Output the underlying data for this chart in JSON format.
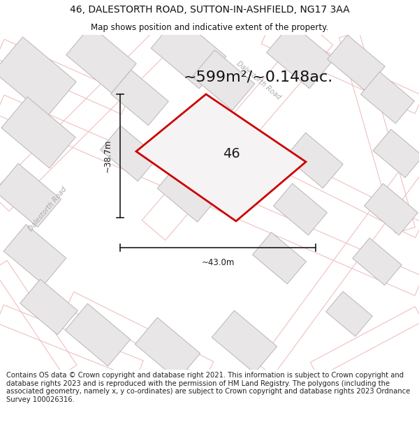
{
  "title_line1": "46, DALESTORTH ROAD, SUTTON-IN-ASHFIELD, NG17 3AA",
  "title_line2": "Map shows position and indicative extent of the property.",
  "area_text": "~599m²/~0.148ac.",
  "property_number": "46",
  "dim_width_label": "~43.0m",
  "dim_height_label": "~38.7m",
  "footer_text": "Contains OS data © Crown copyright and database right 2021. This information is subject to Crown copyright and database rights 2023 and is reproduced with the permission of HM Land Registry. The polygons (including the associated geometry, namely x, y co-ordinates) are subject to Crown copyright and database rights 2023 Ordnance Survey 100026316.",
  "map_bg": "#f7f6f6",
  "block_fill": "#e8e6e6",
  "block_edge": "#b8b6b6",
  "road_outline_color": "#f0c0c0",
  "property_fill": "#f5f3f3",
  "property_edge": "#cc0000",
  "dim_color": "#1a1a1a",
  "road_label_color": "#aaaaaa",
  "title_fontsize": 10,
  "subtitle_fontsize": 8.5,
  "area_fontsize": 16,
  "prop_num_fontsize": 14,
  "footer_fontsize": 7.2
}
